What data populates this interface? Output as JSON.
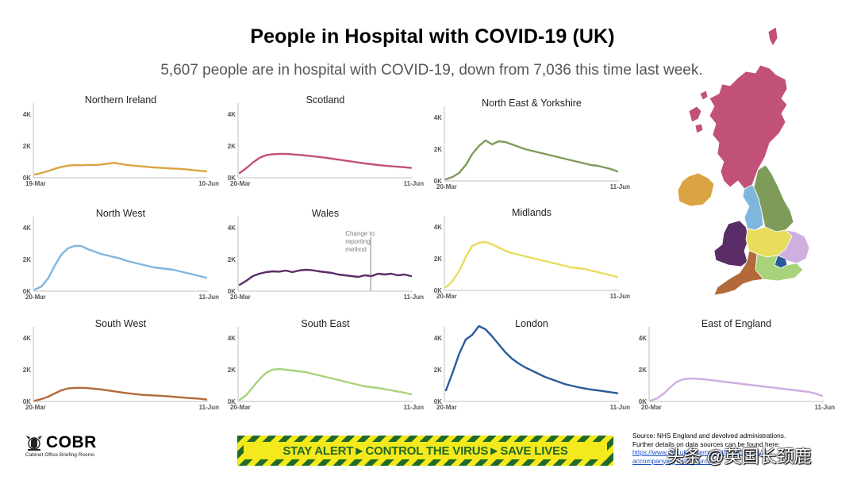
{
  "header": {
    "title": "People in Hospital with COVID-19 (UK)",
    "subtitle": "5,607 people are in hospital with COVID-19, down from 7,036 this time last week."
  },
  "colors": {
    "northern_ireland": "#d9a441",
    "scotland": "#c2517a",
    "north_east_yorkshire": "#7f9b5a",
    "north_west": "#7fb6dd",
    "wales": "#5a2d66",
    "midlands": "#e8dc5a",
    "south_west": "#b36a3a",
    "south_east": "#a8d37a",
    "london": "#2b5b9a",
    "east_of_england": "#cfaee0",
    "axis": "#bfbfbf",
    "annotation": "#7f7f7f"
  },
  "chart_data": [
    {
      "type": "line",
      "id": "northern-ireland",
      "title": "Northern Ireland",
      "color_key": "northern_ireland",
      "ylim": [
        0,
        4000
      ],
      "yticks": [
        "4K",
        "2K",
        "0K"
      ],
      "x_start_label": "19-Mar",
      "x_end_label": "10-Jun",
      "values": [
        200,
        300,
        420,
        560,
        680,
        760,
        800,
        780,
        810,
        800,
        830,
        880,
        940,
        870,
        800,
        760,
        720,
        690,
        650,
        630,
        600,
        580,
        560,
        520,
        480,
        440,
        400
      ]
    },
    {
      "type": "line",
      "id": "scotland",
      "title": "Scotland",
      "color_key": "scotland",
      "ylim": [
        0,
        4000
      ],
      "yticks": [
        "4K",
        "2K",
        "0K"
      ],
      "x_start_label": "20-Mar",
      "x_end_label": "11-Jun",
      "values": [
        300,
        600,
        950,
        1250,
        1420,
        1480,
        1500,
        1500,
        1470,
        1440,
        1400,
        1360,
        1310,
        1260,
        1200,
        1140,
        1080,
        1020,
        960,
        900,
        850,
        800,
        760,
        720,
        690,
        660,
        620
      ]
    },
    {
      "type": "line",
      "id": "north-east-yorkshire",
      "title": "North East & Yorkshire",
      "color_key": "north_east_yorkshire",
      "ylim": [
        0,
        4000
      ],
      "yticks": [
        "4K",
        "2K",
        "0K"
      ],
      "x_start_label": "20-Mar",
      "x_end_label": "11-Jun",
      "values": [
        100,
        250,
        500,
        1000,
        1700,
        2200,
        2550,
        2300,
        2500,
        2450,
        2300,
        2150,
        2000,
        1900,
        1800,
        1700,
        1600,
        1500,
        1400,
        1300,
        1200,
        1100,
        1000,
        950,
        850,
        750,
        600
      ]
    },
    {
      "type": "line",
      "id": "north-west",
      "title": "North West",
      "color_key": "north_west",
      "ylim": [
        0,
        4000
      ],
      "yticks": [
        "4K",
        "2K",
        "0K"
      ],
      "x_start_label": "20-Mar",
      "x_end_label": "11-Jun",
      "values": [
        100,
        300,
        800,
        1600,
        2300,
        2700,
        2850,
        2850,
        2650,
        2500,
        2350,
        2250,
        2150,
        2050,
        1900,
        1800,
        1700,
        1600,
        1500,
        1450,
        1400,
        1350,
        1250,
        1150,
        1050,
        950,
        850
      ]
    },
    {
      "type": "line",
      "id": "wales",
      "title": "Wales",
      "color_key": "wales",
      "ylim": [
        0,
        4000
      ],
      "yticks": [
        "4K",
        "2K",
        "0K"
      ],
      "x_start_label": "20-Mar",
      "x_end_label": "11-Jun",
      "annotation": {
        "label": [
          "Change to",
          "reporting",
          "method"
        ],
        "at_fraction": 0.76
      },
      "values": [
        400,
        650,
        950,
        1100,
        1200,
        1250,
        1230,
        1300,
        1200,
        1300,
        1350,
        1320,
        1250,
        1200,
        1150,
        1050,
        1000,
        950,
        900,
        1000,
        950,
        1100,
        1050,
        1100,
        1000,
        1050,
        950
      ]
    },
    {
      "type": "line",
      "id": "midlands",
      "title": "Midlands",
      "color_key": "midlands",
      "ylim": [
        0,
        4000
      ],
      "yticks": [
        "4K",
        "2K",
        "0K"
      ],
      "x_start_label": "20-Mar",
      "x_end_label": "11-Jun",
      "values": [
        200,
        600,
        1200,
        2100,
        2800,
        3000,
        3050,
        2900,
        2700,
        2500,
        2350,
        2250,
        2150,
        2050,
        1950,
        1850,
        1750,
        1650,
        1550,
        1450,
        1400,
        1350,
        1250,
        1150,
        1050,
        950,
        850
      ]
    },
    {
      "type": "line",
      "id": "south-west",
      "title": "South West",
      "color_key": "south_west",
      "ylim": [
        0,
        4000
      ],
      "yticks": [
        "4K",
        "2K",
        "0K"
      ],
      "x_start_label": "20-Mar",
      "x_end_label": "11-Jun",
      "values": [
        50,
        150,
        300,
        500,
        700,
        820,
        850,
        860,
        840,
        800,
        760,
        700,
        640,
        580,
        520,
        470,
        430,
        400,
        380,
        360,
        330,
        300,
        260,
        230,
        200,
        170,
        120
      ]
    },
    {
      "type": "line",
      "id": "south-east",
      "title": "South East",
      "color_key": "south_east",
      "ylim": [
        0,
        4000
      ],
      "yticks": [
        "4K",
        "2K",
        "0K"
      ],
      "x_start_label": "20-Mar",
      "x_end_label": "11-Jun",
      "values": [
        100,
        400,
        900,
        1400,
        1800,
        2000,
        2050,
        2000,
        1950,
        1900,
        1850,
        1750,
        1650,
        1550,
        1450,
        1350,
        1250,
        1150,
        1050,
        950,
        900,
        850,
        780,
        700,
        620,
        550,
        450
      ]
    },
    {
      "type": "line",
      "id": "london",
      "title": "London",
      "color_key": "london",
      "ylim": [
        0,
        4000
      ],
      "yticks": [
        "4K",
        "2K",
        "0K"
      ],
      "x_start_label": "20-Mar",
      "x_end_label": "11-Jun",
      "values": [
        700,
        1800,
        3000,
        3900,
        4200,
        4750,
        4550,
        4100,
        3600,
        3100,
        2700,
        2400,
        2150,
        1950,
        1750,
        1550,
        1400,
        1250,
        1100,
        1000,
        900,
        820,
        750,
        700,
        640,
        580,
        520
      ]
    },
    {
      "type": "line",
      "id": "east-of-england",
      "title": "East of England",
      "color_key": "east_of_england",
      "ylim": [
        0,
        4000
      ],
      "yticks": [
        "4K",
        "2K",
        "0K"
      ],
      "x_start_label": "20-Mar",
      "x_end_label": "11-Jun",
      "values": [
        50,
        200,
        500,
        900,
        1250,
        1400,
        1450,
        1420,
        1400,
        1350,
        1300,
        1250,
        1200,
        1150,
        1100,
        1050,
        1000,
        950,
        900,
        850,
        800,
        750,
        700,
        650,
        600,
        500,
        350
      ]
    }
  ],
  "map": {
    "regions": [
      {
        "name": "scotland",
        "color_key": "scotland"
      },
      {
        "name": "northern_ireland",
        "color_key": "northern_ireland"
      },
      {
        "name": "north_east_yorkshire",
        "color_key": "north_east_yorkshire"
      },
      {
        "name": "north_west",
        "color_key": "north_west"
      },
      {
        "name": "wales",
        "color_key": "wales"
      },
      {
        "name": "midlands",
        "color_key": "midlands"
      },
      {
        "name": "east_of_england",
        "color_key": "east_of_england"
      },
      {
        "name": "london",
        "color_key": "london"
      },
      {
        "name": "south_east",
        "color_key": "south_east"
      },
      {
        "name": "south_west",
        "color_key": "south_west"
      }
    ]
  },
  "footer": {
    "logo_name": "COBR",
    "logo_sub": "Cabinet Office Briefing Rooms",
    "slogan": [
      "STAY ALERT",
      "CONTROL THE VIRUS",
      "SAVE LIVES"
    ],
    "source_line1": "Source: NHS England and devolved administrations.",
    "source_line2": "Further details on data sources can be found here:",
    "source_link": "https://www.gov.uk/government/publications/",
    "source_line3": "accompanying data sources",
    "watermark": "头条 @英国长颈鹿"
  }
}
